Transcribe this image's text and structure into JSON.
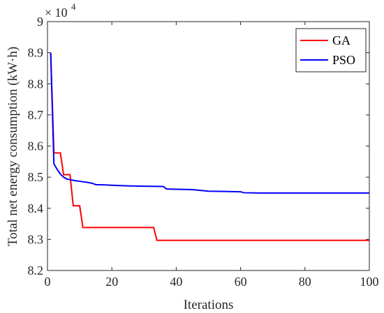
{
  "chart_data": {
    "type": "line",
    "title": "",
    "xlabel": "Iterations",
    "ylabel": "Total net energy consumption (kW·h)",
    "y_exponent": {
      "base": "× 10",
      "power": "4"
    },
    "xlim": [
      0,
      100
    ],
    "ylim": [
      8.2,
      9.0
    ],
    "xticks": [
      "0",
      "20",
      "40",
      "60",
      "80",
      "100"
    ],
    "yticks": [
      "8.2",
      "8.3",
      "8.4",
      "8.5",
      "8.6",
      "8.7",
      "8.8",
      "8.9",
      "9"
    ],
    "grid": false,
    "legend_position": "top-right",
    "series": [
      {
        "name": "GA",
        "color": "#ff0000",
        "x": [
          1,
          2,
          4,
          5,
          7,
          8,
          10,
          11,
          33,
          34,
          100
        ],
        "y": [
          8.9,
          8.578,
          8.578,
          8.508,
          8.508,
          8.408,
          8.408,
          8.338,
          8.338,
          8.297,
          8.297
        ]
      },
      {
        "name": "PSO",
        "color": "#0000ff",
        "x": [
          1,
          2,
          3,
          4,
          5,
          6,
          7,
          8,
          9,
          10,
          11,
          12,
          13,
          14,
          15,
          18,
          20,
          22,
          25,
          30,
          36,
          37,
          40,
          45,
          50,
          55,
          60,
          61,
          66,
          70,
          80,
          90,
          100
        ],
        "y": [
          8.9,
          8.543,
          8.525,
          8.51,
          8.5,
          8.494,
          8.492,
          8.49,
          8.488,
          8.487,
          8.485,
          8.484,
          8.482,
          8.48,
          8.476,
          8.475,
          8.474,
          8.473,
          8.472,
          8.471,
          8.47,
          8.462,
          8.461,
          8.46,
          8.455,
          8.454,
          8.453,
          8.45,
          8.449,
          8.449,
          8.449,
          8.449,
          8.449
        ]
      }
    ]
  }
}
